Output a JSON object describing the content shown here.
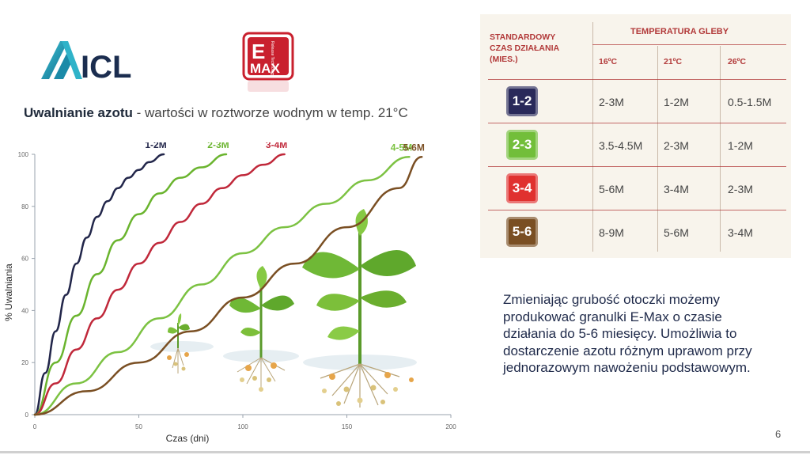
{
  "logos": {
    "icl_text": "ICL",
    "emax_letter": "E",
    "emax_text": "MAX",
    "emax_small": "Release Technology"
  },
  "title": {
    "bold": "Uwalnianie azotu",
    "rest": " - wartości w roztworze wodnym w temp. 21°C"
  },
  "chart_data": {
    "type": "line",
    "title": "Uwalnianie azotu - wartości w roztworze wodnym w temp. 21°C",
    "xlabel": "Czas (dni)",
    "ylabel": "% Uwalniania",
    "xlim": [
      0,
      200
    ],
    "ylim": [
      0,
      100
    ],
    "xticks": [
      0,
      50,
      100,
      150,
      200
    ],
    "yticks": [
      0,
      20,
      40,
      60,
      80,
      100
    ],
    "grid": false,
    "series": [
      {
        "name": "1-2M",
        "color": "#22264a",
        "x": [
          0,
          5,
          10,
          15,
          20,
          25,
          30,
          35,
          40,
          45,
          50,
          55,
          62
        ],
        "y": [
          0,
          16,
          32,
          46,
          58,
          68,
          76,
          82,
          87,
          91,
          94,
          97,
          100
        ]
      },
      {
        "name": "2-3M",
        "color": "#6ab42e",
        "x": [
          0,
          10,
          20,
          30,
          40,
          50,
          60,
          70,
          80,
          92
        ],
        "y": [
          0,
          20,
          38,
          54,
          67,
          77,
          85,
          91,
          95,
          100
        ]
      },
      {
        "name": "3-4M",
        "color": "#c0283a",
        "x": [
          0,
          10,
          20,
          30,
          40,
          50,
          60,
          70,
          80,
          90,
          100,
          110,
          120
        ],
        "y": [
          0,
          12,
          25,
          37,
          48,
          58,
          66,
          74,
          81,
          87,
          92,
          96,
          100
        ]
      },
      {
        "name": "4-5M",
        "color": "#7cc242",
        "x": [
          0,
          20,
          40,
          60,
          80,
          100,
          120,
          140,
          160,
          180
        ],
        "y": [
          0,
          12,
          24,
          37,
          50,
          62,
          72,
          81,
          90,
          99
        ]
      },
      {
        "name": "5-6M",
        "color": "#7a4f23",
        "x": [
          0,
          25,
          50,
          75,
          100,
          125,
          150,
          175,
          186
        ],
        "y": [
          0,
          9,
          20,
          32,
          45,
          58,
          72,
          87,
          99
        ]
      }
    ]
  },
  "table": {
    "header_left": [
      "STANDARDOWY",
      "CZAS DZIAŁANIA",
      "(MIES.)"
    ],
    "header_right": "TEMPERATURA GLEBY",
    "temps": [
      "16ºC",
      "21ºC",
      "26ºC"
    ],
    "rows": [
      {
        "badge": "1-2",
        "color": "#2a2a5a",
        "values": [
          "2-3M",
          "1-2M",
          "0.5-1.5M"
        ]
      },
      {
        "badge": "2-3",
        "color": "#72be3a",
        "values": [
          "3.5-4.5M",
          "2-3M",
          "1-2M"
        ]
      },
      {
        "badge": "3-4",
        "color": "#e0312f",
        "values": [
          "5-6M",
          "3-4M",
          "2-3M"
        ]
      },
      {
        "badge": "5-6",
        "color": "#7a4f23",
        "values": [
          "8-9M",
          "5-6M",
          "3-4M"
        ]
      }
    ]
  },
  "description": "Zmieniając grubość otoczki możemy produkować granulki E-Max o czasie działania do 5-6 miesięcy. Umożliwia to dostarczenie azotu różnym uprawom przy jednorazowym nawożeniu podstawowym.",
  "page_number": "6"
}
